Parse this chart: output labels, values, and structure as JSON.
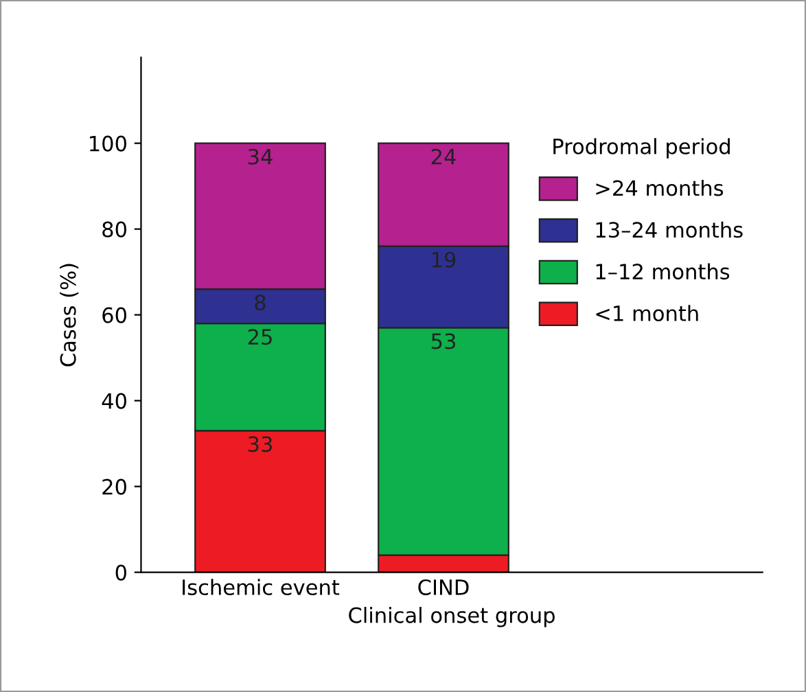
{
  "chart_data": {
    "type": "bar",
    "stacked": true,
    "xlabel": "Clinical onset group",
    "ylabel": "Cases (%)",
    "legend_title": "Prodromal period",
    "legend": "top right",
    "grid": false,
    "categories": [
      "Ischemic event",
      "CIND"
    ],
    "ylim": [
      0,
      120
    ],
    "yticks": [
      0,
      20,
      40,
      60,
      80,
      100
    ],
    "series": [
      {
        "name": "<1 month",
        "color": "#ed1c24",
        "values": [
          33,
          4
        ],
        "value_labels": [
          "33",
          null
        ]
      },
      {
        "name": "1–12 months",
        "color": "#0db04b",
        "values": [
          25,
          53
        ],
        "value_labels": [
          "25",
          "53"
        ]
      },
      {
        "name": "13–24 months",
        "color": "#2e3192",
        "values": [
          8,
          19
        ],
        "value_labels": [
          "8",
          "19"
        ]
      },
      {
        "name": ">24 months",
        "color": "#b5218f",
        "values": [
          34,
          24
        ],
        "value_labels": [
          "34",
          "24"
        ]
      }
    ]
  }
}
